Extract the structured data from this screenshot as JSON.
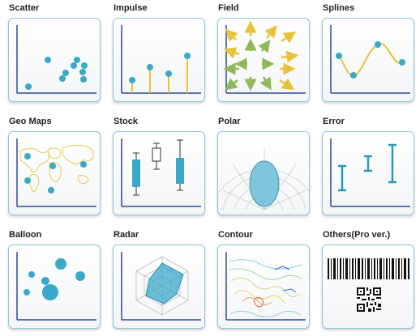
{
  "tiles": [
    {
      "label": "Scatter"
    },
    {
      "label": "Impulse"
    },
    {
      "label": "Field"
    },
    {
      "label": "Splines"
    },
    {
      "label": "Geo Maps"
    },
    {
      "label": "Stock"
    },
    {
      "label": "Polar"
    },
    {
      "label": "Error"
    },
    {
      "label": "Balloon"
    },
    {
      "label": "Radar"
    },
    {
      "label": "Contour"
    },
    {
      "label": "Others(Pro ver.)"
    }
  ],
  "colors": {
    "accent": "#3aa8c8",
    "card_border": "#8ec6dc",
    "axis": "#2c4a9a",
    "yellow": "#e8c33a",
    "field_green": "#8fb85a"
  }
}
